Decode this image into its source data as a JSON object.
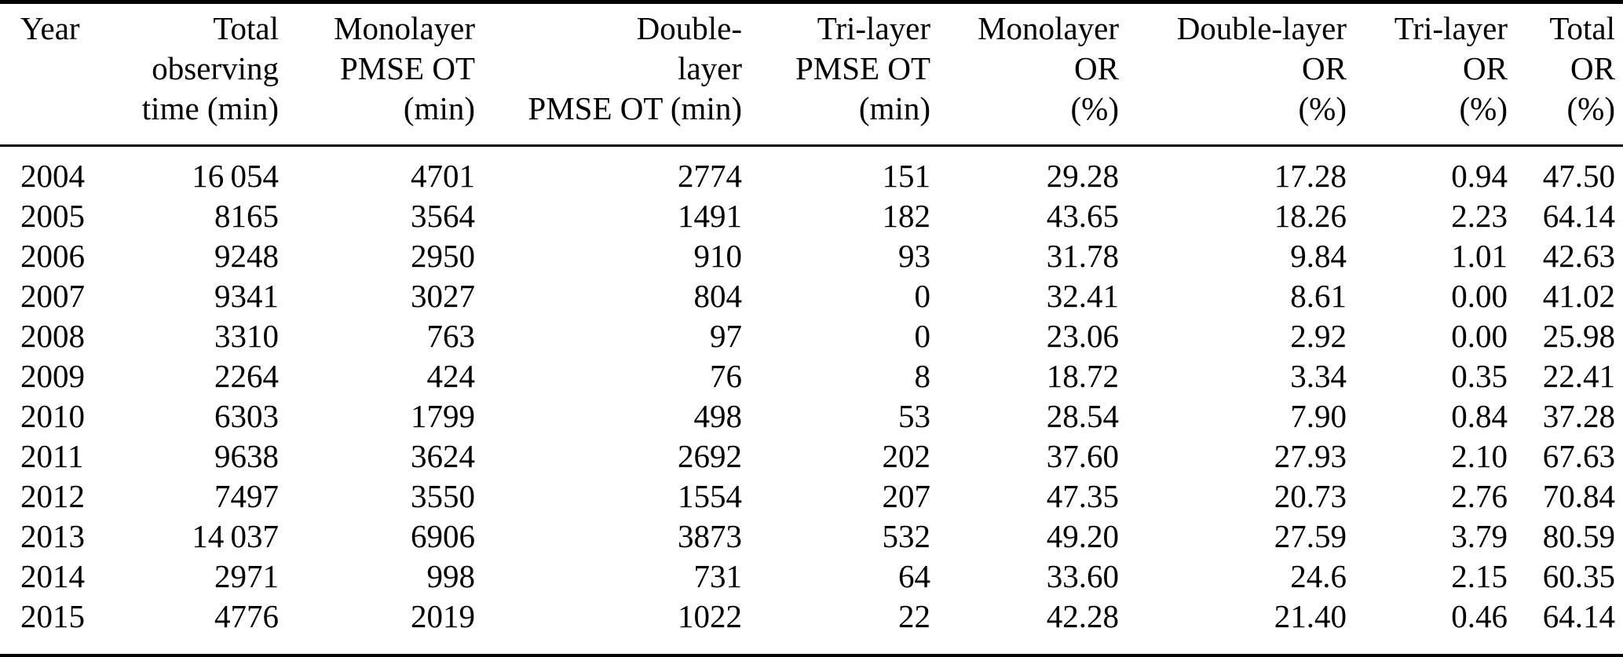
{
  "page": {
    "kind": "journal-article-data-table",
    "text_color": "#000000",
    "background_color": "#ffffff",
    "rule_color": "#000000"
  },
  "table": {
    "columns": [
      {
        "id": "year",
        "align": "left",
        "lines": [
          "Year"
        ]
      },
      {
        "id": "total-observing-time",
        "align": "right",
        "lines": [
          "Total",
          "observing",
          "time (min)"
        ]
      },
      {
        "id": "monolayer-pmse-ot",
        "align": "right",
        "lines": [
          "Monolayer",
          "PMSE OT",
          "(min)"
        ]
      },
      {
        "id": "double-layer-pmse-ot",
        "align": "right",
        "lines": [
          "Double-",
          "layer",
          "PMSE OT (min)"
        ]
      },
      {
        "id": "tri-layer-pmse-ot",
        "align": "right",
        "lines": [
          "Tri-layer",
          "PMSE OT",
          "(min)"
        ]
      },
      {
        "id": "monolayer-or",
        "align": "right",
        "lines": [
          "Monolayer",
          "OR",
          "(%)"
        ]
      },
      {
        "id": "double-layer-or",
        "align": "right",
        "lines": [
          "Double-layer",
          "OR",
          "(%)"
        ]
      },
      {
        "id": "tri-layer-or",
        "align": "right",
        "lines": [
          "Tri-layer",
          "OR",
          "(%)"
        ]
      },
      {
        "id": "total-or",
        "align": "right",
        "lines": [
          "Total",
          "OR",
          "(%)"
        ]
      }
    ],
    "rows": [
      [
        "2004",
        "16 054",
        "4701",
        "2774",
        "151",
        "29.28",
        "17.28",
        "0.94",
        "47.50"
      ],
      [
        "2005",
        "8165",
        "3564",
        "1491",
        "182",
        "43.65",
        "18.26",
        "2.23",
        "64.14"
      ],
      [
        "2006",
        "9248",
        "2950",
        "910",
        "93",
        "31.78",
        "9.84",
        "1.01",
        "42.63"
      ],
      [
        "2007",
        "9341",
        "3027",
        "804",
        "0",
        "32.41",
        "8.61",
        "0.00",
        "41.02"
      ],
      [
        "2008",
        "3310",
        "763",
        "97",
        "0",
        "23.06",
        "2.92",
        "0.00",
        "25.98"
      ],
      [
        "2009",
        "2264",
        "424",
        "76",
        "8",
        "18.72",
        "3.34",
        "0.35",
        "22.41"
      ],
      [
        "2010",
        "6303",
        "1799",
        "498",
        "53",
        "28.54",
        "7.90",
        "0.84",
        "37.28"
      ],
      [
        "2011",
        "9638",
        "3624",
        "2692",
        "202",
        "37.60",
        "27.93",
        "2.10",
        "67.63"
      ],
      [
        "2012",
        "7497",
        "3550",
        "1554",
        "207",
        "47.35",
        "20.73",
        "2.76",
        "70.84"
      ],
      [
        "2013",
        "14 037",
        "6906",
        "3873",
        "532",
        "49.20",
        "27.59",
        "3.79",
        "80.59"
      ],
      [
        "2014",
        "2971",
        "998",
        "731",
        "64",
        "33.60",
        "24.6",
        "2.15",
        "60.35"
      ],
      [
        "2015",
        "4776",
        "2019",
        "1022",
        "22",
        "42.28",
        "21.40",
        "0.46",
        "64.14"
      ]
    ]
  },
  "chart_data": {
    "type": "table",
    "title": "",
    "column_headers": [
      "Year",
      "Total observing time (min)",
      "Monolayer PMSE OT (min)",
      "Double-layer PMSE OT (min)",
      "Tri-layer PMSE OT (min)",
      "Monolayer OR (%)",
      "Double-layer OR (%)",
      "Tri-layer OR (%)",
      "Total OR (%)"
    ],
    "rows": [
      [
        2004,
        16054,
        4701,
        2774,
        151,
        29.28,
        17.28,
        0.94,
        47.5
      ],
      [
        2005,
        8165,
        3564,
        1491,
        182,
        43.65,
        18.26,
        2.23,
        64.14
      ],
      [
        2006,
        9248,
        2950,
        910,
        93,
        31.78,
        9.84,
        1.01,
        42.63
      ],
      [
        2007,
        9341,
        3027,
        804,
        0,
        32.41,
        8.61,
        0.0,
        41.02
      ],
      [
        2008,
        3310,
        763,
        97,
        0,
        23.06,
        2.92,
        0.0,
        25.98
      ],
      [
        2009,
        2264,
        424,
        76,
        8,
        18.72,
        3.34,
        0.35,
        22.41
      ],
      [
        2010,
        6303,
        1799,
        498,
        53,
        28.54,
        7.9,
        0.84,
        37.28
      ],
      [
        2011,
        9638,
        3624,
        2692,
        202,
        37.6,
        27.93,
        2.1,
        67.63
      ],
      [
        2012,
        7497,
        3550,
        1554,
        207,
        47.35,
        20.73,
        2.76,
        70.84
      ],
      [
        2013,
        14037,
        6906,
        3873,
        532,
        49.2,
        27.59,
        3.79,
        80.59
      ],
      [
        2014,
        2971,
        998,
        731,
        64,
        33.6,
        24.6,
        2.15,
        60.35
      ],
      [
        2015,
        4776,
        2019,
        1022,
        22,
        42.28,
        21.4,
        0.46,
        64.14
      ]
    ]
  }
}
